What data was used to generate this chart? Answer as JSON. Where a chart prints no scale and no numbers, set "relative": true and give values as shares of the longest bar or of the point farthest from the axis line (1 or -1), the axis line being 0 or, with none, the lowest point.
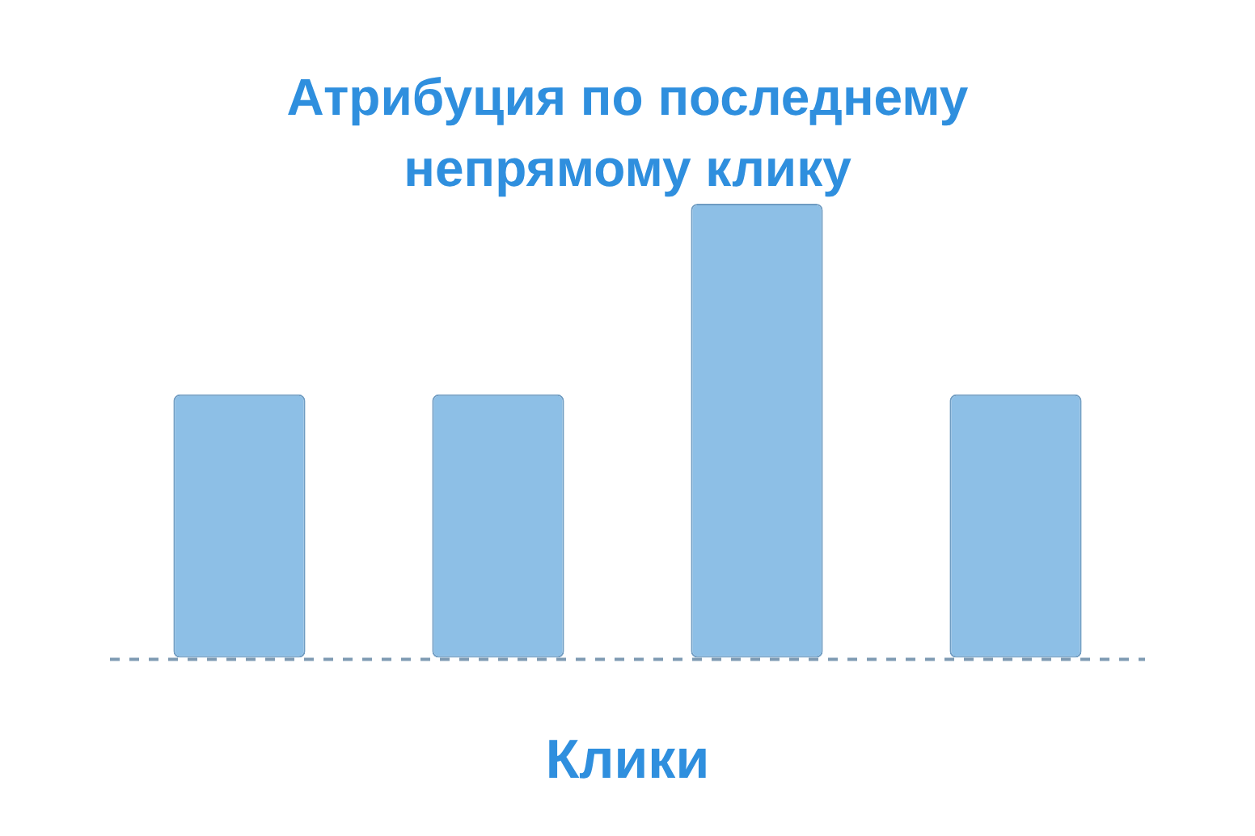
{
  "chart_data": {
    "type": "bar",
    "title": "Атрибуция по последнему непрямому клику",
    "xlabel": "Клики",
    "relative": true,
    "categories": [
      null,
      null,
      null,
      null
    ],
    "series": [
      {
        "color": "#8dbfe6",
        "values": [
          0.58,
          0.58,
          1,
          0.58
        ]
      }
    ],
    "grid": false,
    "legend": false
  }
}
